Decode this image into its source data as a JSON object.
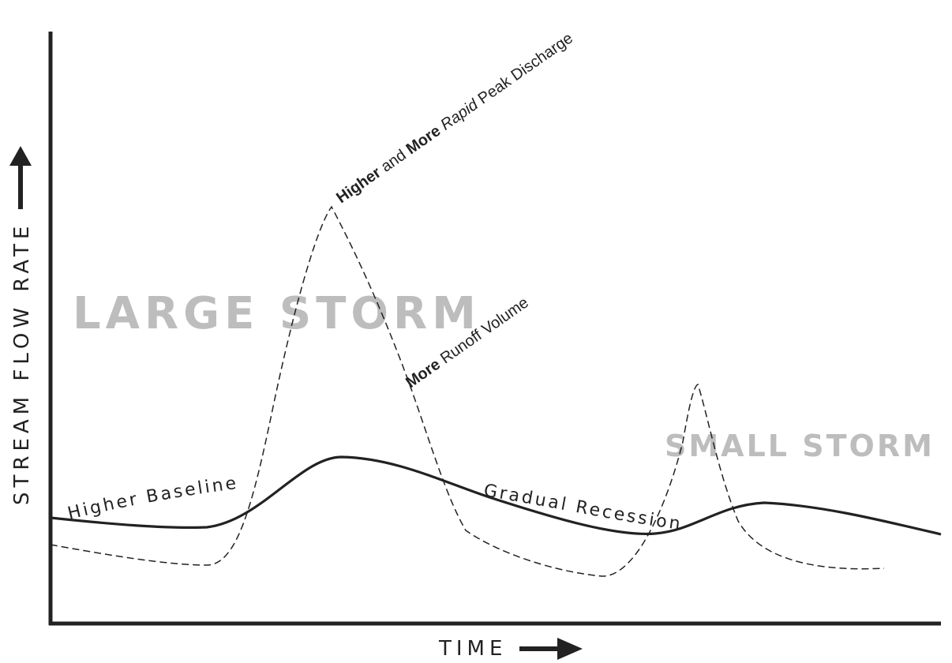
{
  "axes": {
    "y_label": "STREAM FLOW RATE",
    "x_label": "TIME"
  },
  "storms": {
    "large": "LARGE STORM",
    "small": "SMALL STORM"
  },
  "annotations": {
    "peak": {
      "bold1": "Higher",
      "text1": " and ",
      "bold2": "More",
      "italic": " Rapid",
      "text2": " Peak Discharge"
    },
    "runoff": {
      "bold": "More",
      "text": " Runoff Volume"
    },
    "baseline": "Higher Baseline",
    "recession": "Gradual Recession"
  },
  "colors": {
    "ink": "#222222",
    "storm_text": "#bdbdbd"
  }
}
